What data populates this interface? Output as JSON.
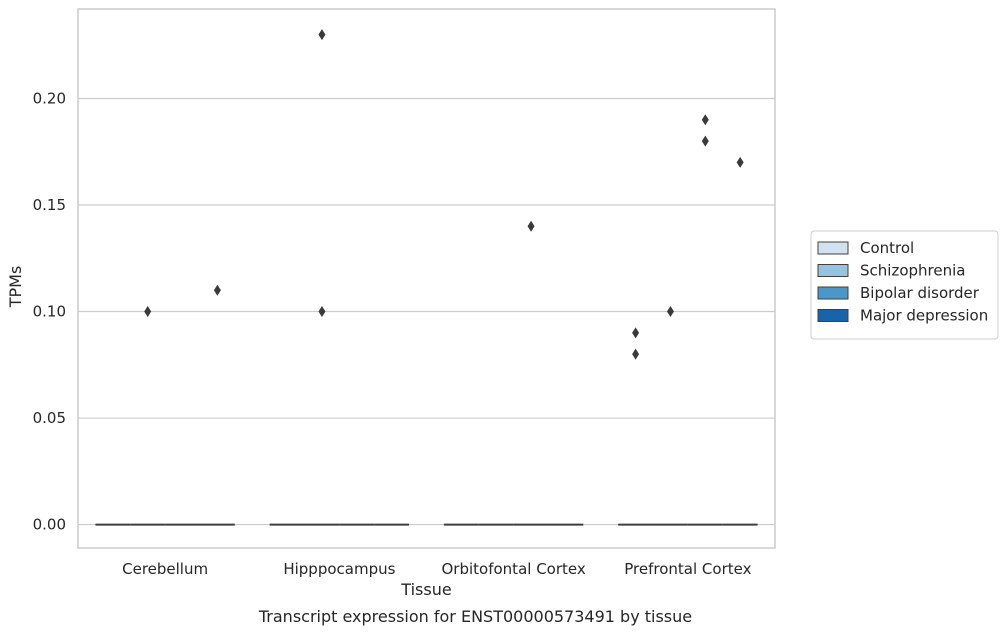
{
  "chart_data": {
    "type": "boxplot",
    "caption": "Transcript expression for ENST00000573491 by tissue",
    "xlabel": "Tissue",
    "ylabel": "TPMs",
    "ylim": [
      -0.011,
      0.242
    ],
    "yticks": [
      "0.00",
      "0.05",
      "0.10",
      "0.15",
      "0.20"
    ],
    "ytick_values": [
      0.0,
      0.05,
      0.1,
      0.15,
      0.2
    ],
    "grid": "horizontal",
    "legend_position": "right",
    "categories": [
      "Cerebellum",
      "Hipppocampus",
      "Orbitofontal Cortex",
      "Prefrontal Cortex"
    ],
    "series": [
      {
        "name": "Control",
        "color": "#d0e1f2",
        "median": [
          0,
          0,
          0,
          0
        ],
        "outliers": [
          [],
          [],
          [],
          [
            0.08,
            0.09
          ]
        ]
      },
      {
        "name": "Schizophrenia",
        "color": "#94c4df",
        "median": [
          0,
          0,
          0,
          0
        ],
        "outliers": [
          [
            0.1
          ],
          [
            0.23,
            0.1
          ],
          [],
          [
            0.1
          ]
        ]
      },
      {
        "name": "Bipolar disorder",
        "color": "#4a98c9",
        "median": [
          0,
          0,
          0,
          0
        ],
        "outliers": [
          [],
          [],
          [
            0.14
          ],
          [
            0.19,
            0.18
          ]
        ]
      },
      {
        "name": "Major depression",
        "color": "#1764ab",
        "median": [
          0,
          0,
          0,
          0
        ],
        "outliers": [
          [
            0.11
          ],
          [],
          [],
          [
            0.17
          ]
        ]
      }
    ]
  }
}
